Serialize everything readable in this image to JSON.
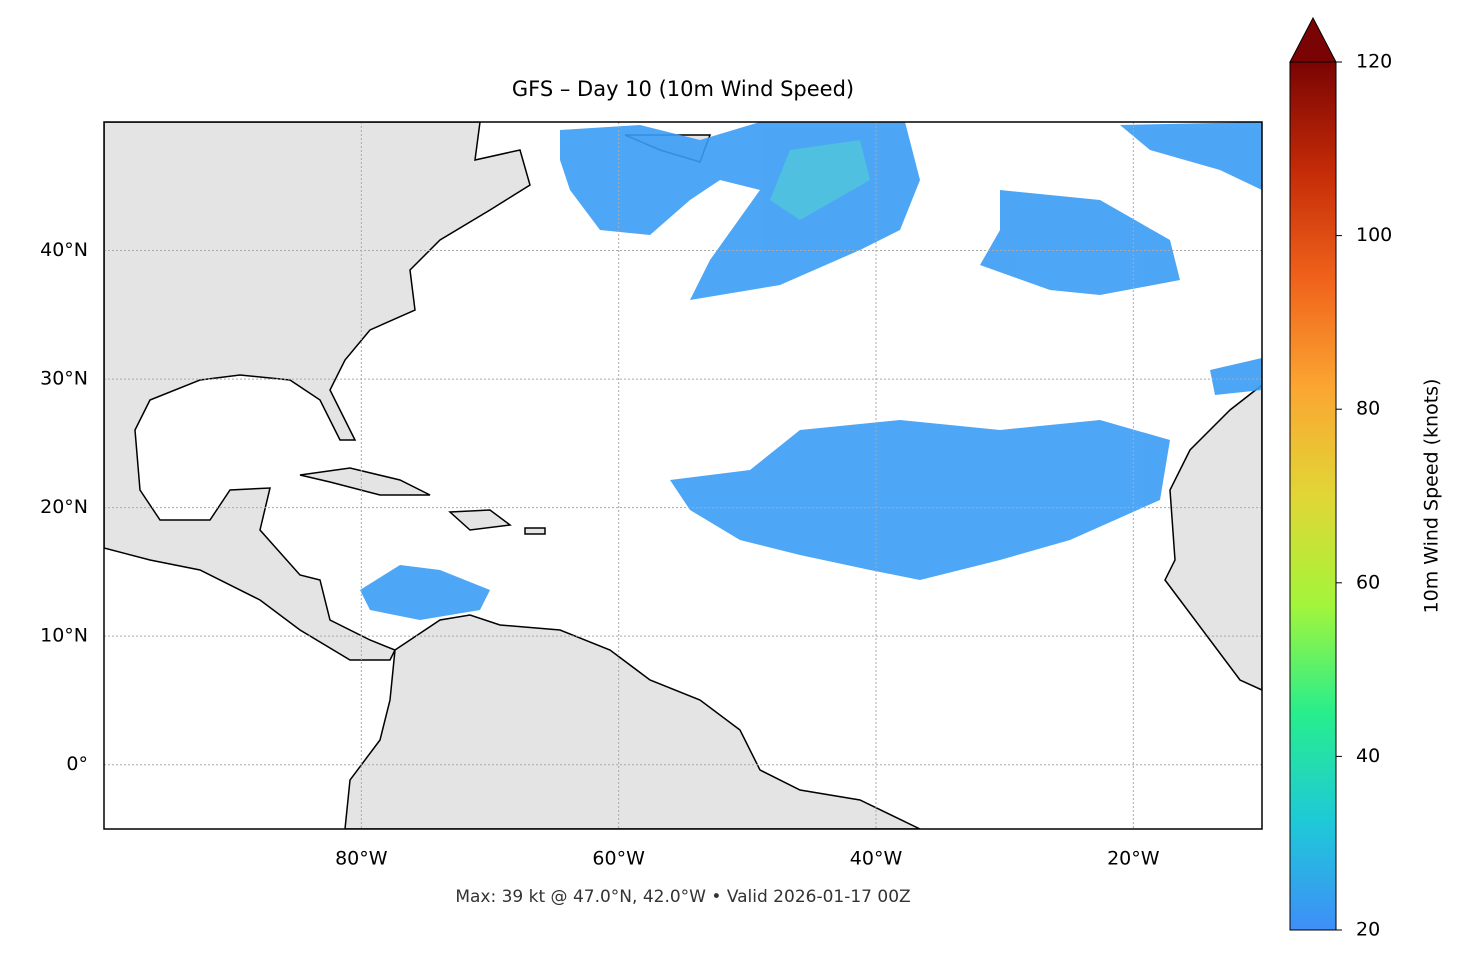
{
  "chart_data": {
    "type": "map",
    "title": "GFS – Day 10 (10m Wind Speed)",
    "annotation": "Max: 39 kt @ 47.0°N, 42.0°W • Valid 2026-01-17 00Z",
    "xlim": [
      -100,
      -10
    ],
    "ylim": [
      -5,
      50
    ],
    "xticks": [
      {
        "value": -80,
        "label": "80°W"
      },
      {
        "value": -60,
        "label": "60°W"
      },
      {
        "value": -40,
        "label": "40°W"
      },
      {
        "value": -20,
        "label": "20°W"
      }
    ],
    "yticks": [
      {
        "value": 0,
        "label": "0°"
      },
      {
        "value": 10,
        "label": "10°N"
      },
      {
        "value": 20,
        "label": "20°N"
      },
      {
        "value": 30,
        "label": "30°N"
      },
      {
        "value": 40,
        "label": "40°N"
      }
    ],
    "grid": true,
    "colorbar": {
      "label": "10m Wind Speed (knots)",
      "lim": [
        20,
        120
      ],
      "ticks": [
        20,
        40,
        60,
        80,
        100,
        120
      ],
      "extend": "max",
      "colors": [
        "#3f8ef8",
        "#1ec9d8",
        "#28ee8c",
        "#a4f53a",
        "#e1d636",
        "#fba632",
        "#f0621b",
        "#c42b07",
        "#7a0403"
      ]
    }
  }
}
